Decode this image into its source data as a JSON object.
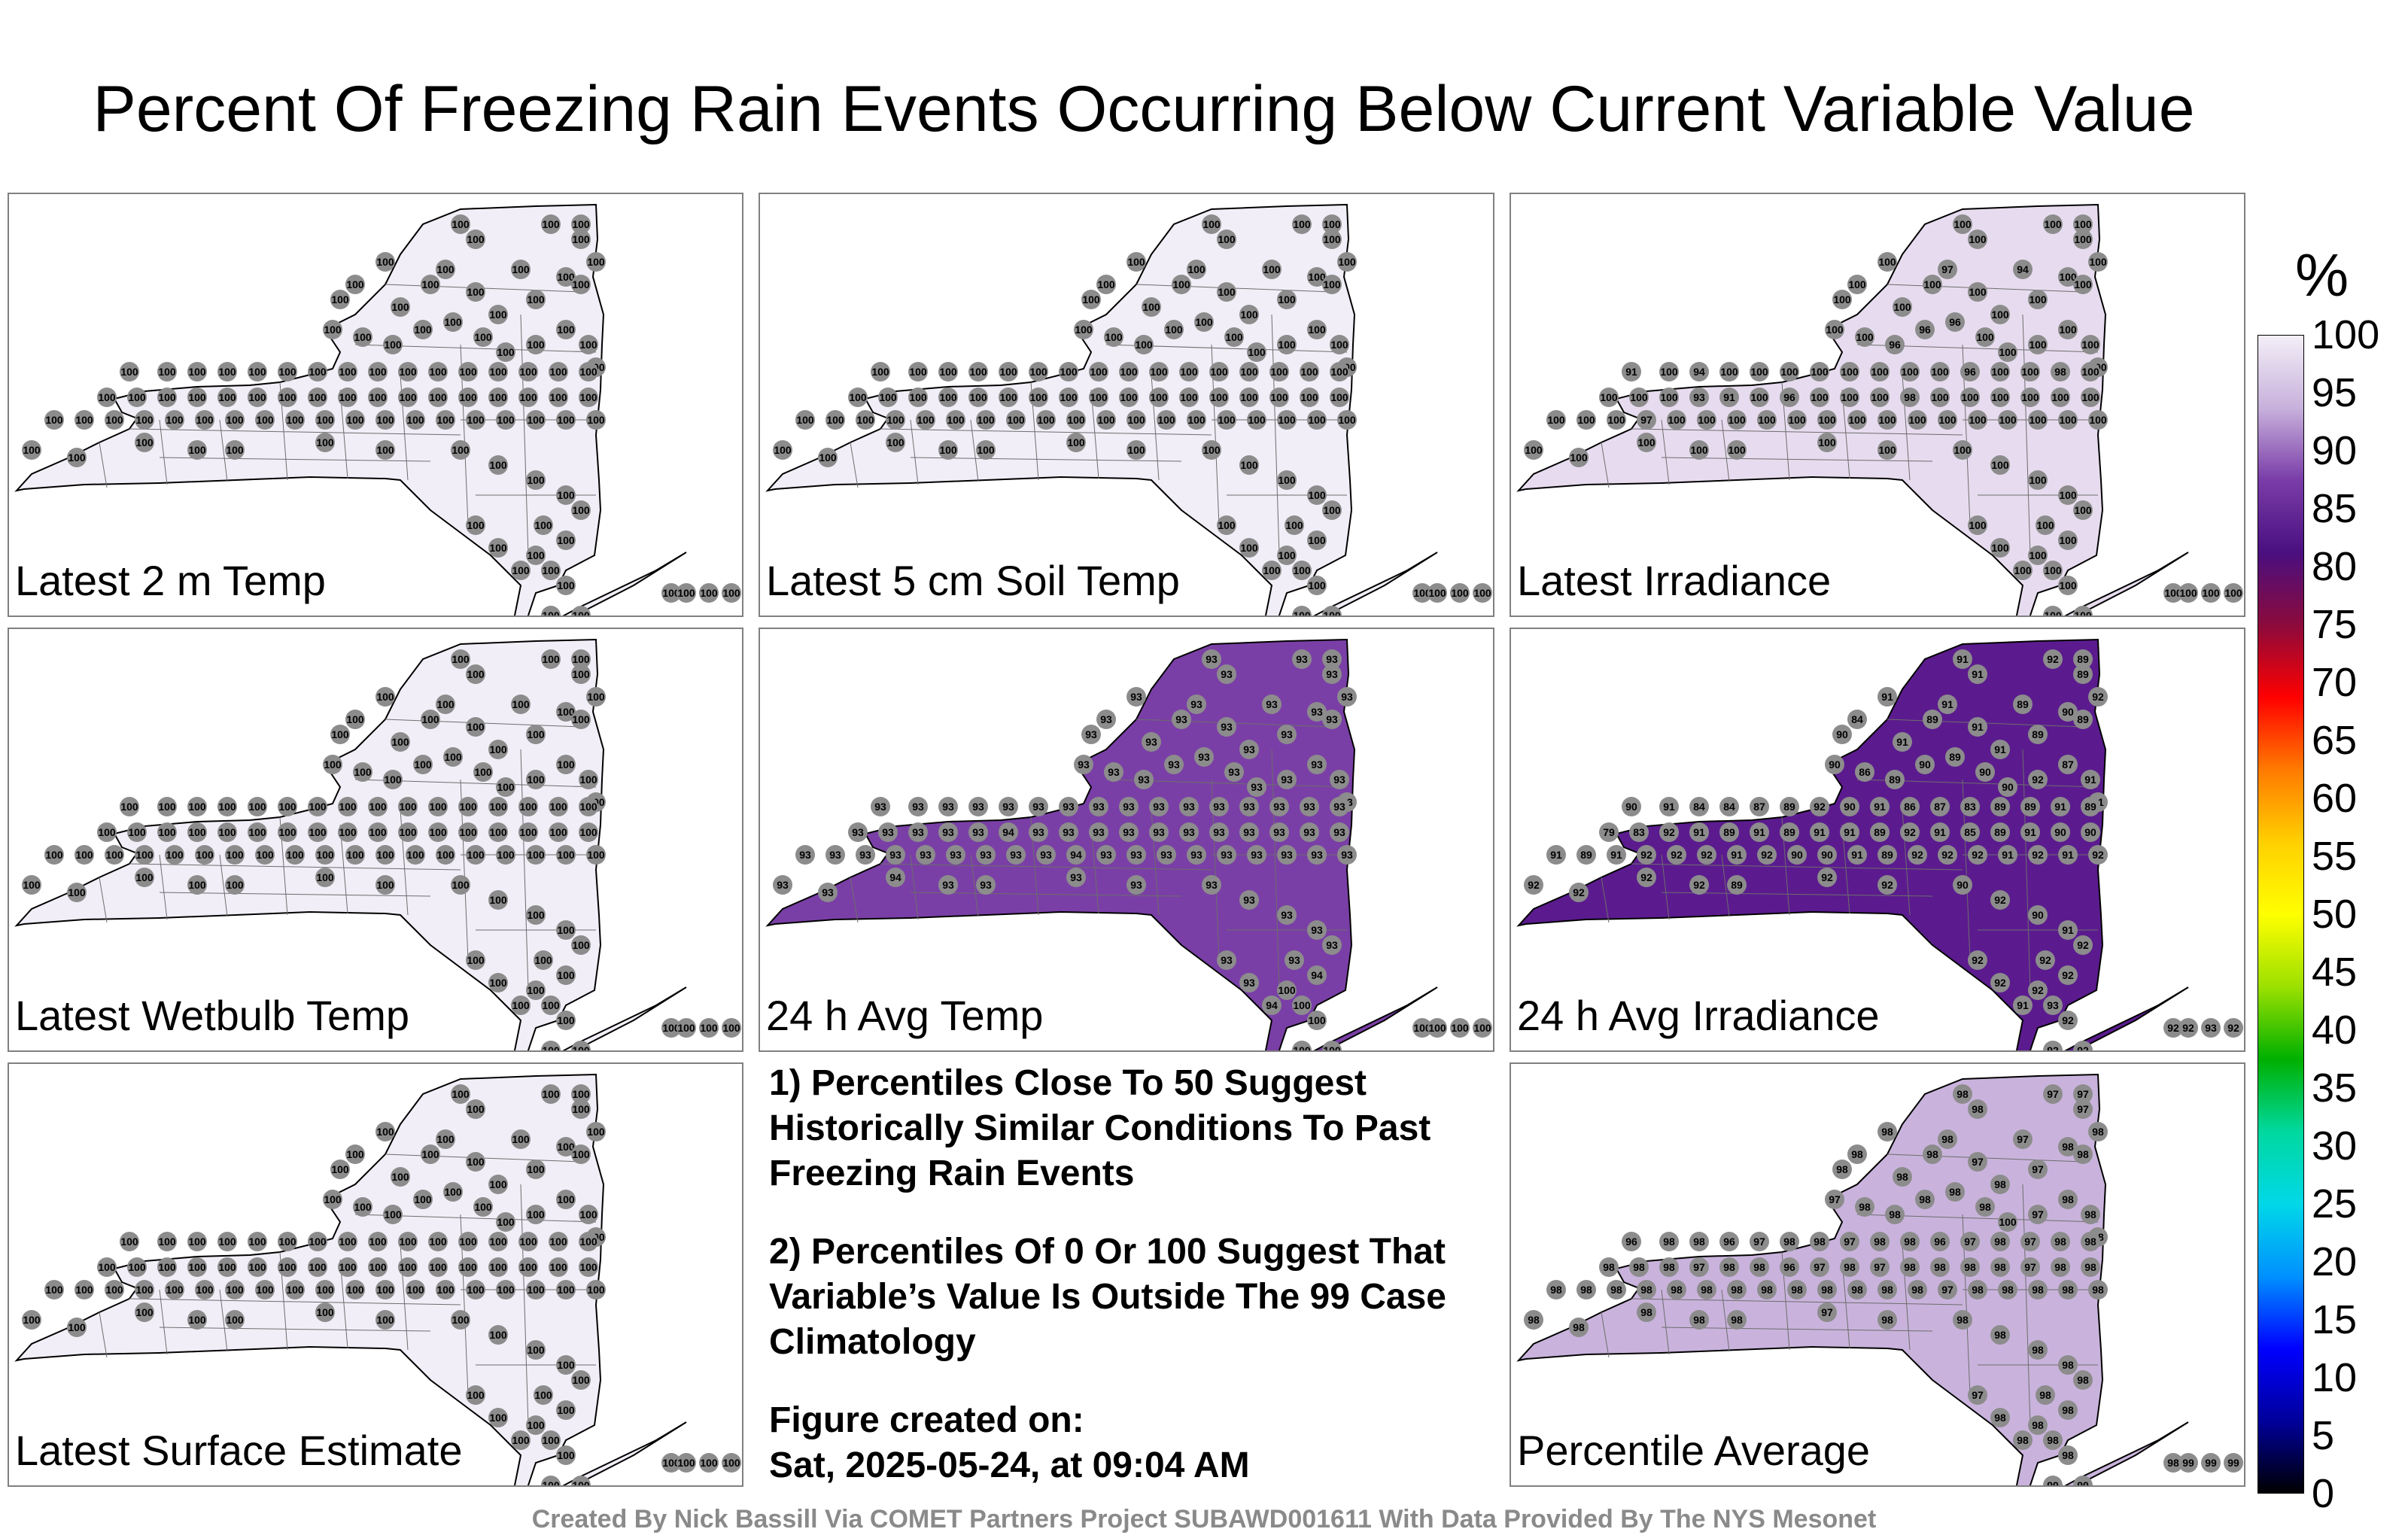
{
  "title": "Percent Of Freezing Rain Events Occurring Below Current Variable Value",
  "panels": [
    {
      "label": "Latest 2 m Temp",
      "shade": "#f2eef7",
      "values": [
        "100",
        "100",
        "100",
        "100",
        "100",
        "100",
        "100",
        "100",
        "100",
        "100",
        "100",
        "100",
        "100",
        "100",
        "100",
        "100",
        "100",
        "100",
        "100",
        "100",
        "100",
        "100",
        "100",
        "100",
        "100",
        "100",
        "100",
        "100",
        "100",
        "100",
        "100",
        "100",
        "100",
        "100",
        "100",
        "100",
        "100",
        "100",
        "100",
        "100",
        "100",
        "100",
        "100",
        "100",
        "100",
        "100",
        "100",
        "100",
        "100",
        "100",
        "100",
        "100",
        "100",
        "100",
        "100",
        "100",
        "100",
        "100",
        "100",
        "100",
        "100",
        "100",
        "100",
        "100",
        "100",
        "100",
        "100",
        "100",
        "100",
        "100",
        "100",
        "100",
        "100",
        "100",
        "100",
        "100",
        "100",
        "100",
        "100",
        "100",
        "100",
        "100",
        "100",
        "100",
        "100",
        "100",
        "100",
        "100",
        "100",
        "100",
        "100",
        "100",
        "100",
        "100",
        "100",
        "100",
        "100",
        "100",
        "100",
        "100",
        "100",
        "100",
        "100",
        "100",
        "100",
        "100",
        "100",
        "100"
      ]
    },
    {
      "label": "Latest 5 cm Soil Temp",
      "shade": "#f2eef7",
      "values": [
        "100",
        "100",
        "100",
        "100",
        "100",
        "100",
        "100",
        "100",
        "100",
        "100",
        "100",
        "100",
        "100",
        "100",
        "100",
        "100",
        "100",
        "100",
        "100",
        "100",
        "100",
        "100",
        "100",
        "100",
        "100",
        "100",
        "100",
        "100",
        "100",
        "100",
        "100",
        "100",
        "100",
        "100",
        "100",
        "100",
        "100",
        "100",
        "100",
        "100",
        "100",
        "100",
        "100",
        "100",
        "100",
        "100",
        "100",
        "100",
        "100",
        "100",
        "100",
        "100",
        "100",
        "100",
        "100",
        "100",
        "100",
        "100",
        "100",
        "100",
        "100",
        "100",
        "100",
        "100",
        "100",
        "100",
        "100",
        "100",
        "100",
        "100",
        "100",
        "100",
        "100",
        "100",
        "100",
        "100",
        "100",
        "100",
        "100",
        "100",
        "100",
        "100",
        "100",
        "100",
        "100",
        "100",
        "100",
        "100",
        "100",
        "100",
        "100",
        "100",
        "100",
        "100",
        "100",
        "100",
        "100",
        "100",
        "100",
        "100",
        "100",
        "100",
        "100",
        "100",
        "100",
        "100",
        "100",
        "100"
      ]
    },
    {
      "label": "Latest Irradiance",
      "shade": "#e7dcef",
      "values": [
        "100",
        "100",
        "100",
        "100",
        "100",
        "94",
        "100",
        "100",
        "100",
        "100",
        "100",
        "97",
        "100",
        "100",
        "100",
        "100",
        "100",
        "100",
        "100",
        "100",
        "96",
        "96",
        "96",
        "100",
        "100",
        "100",
        "100",
        "100",
        "100",
        "91",
        "100",
        "94",
        "100",
        "100",
        "100",
        "100",
        "100",
        "100",
        "100",
        "100",
        "96",
        "100",
        "100",
        "98",
        "100",
        "100",
        "100",
        "100",
        "93",
        "91",
        "100",
        "96",
        "100",
        "100",
        "100",
        "98",
        "100",
        "100",
        "100",
        "100",
        "100",
        "100",
        "100",
        "100",
        "100",
        "97",
        "100",
        "100",
        "100",
        "100",
        "100",
        "100",
        "100",
        "100",
        "100",
        "100",
        "100",
        "100",
        "100",
        "100",
        "100",
        "100",
        "100",
        "100",
        "100",
        "100",
        "100",
        "100",
        "100",
        "100",
        "100",
        "100",
        "100",
        "100",
        "100",
        "100",
        "100",
        "100",
        "100",
        "100",
        "100",
        "100",
        "100",
        "100",
        "100",
        "100",
        "100",
        "100"
      ]
    },
    {
      "label": "Latest Wetbulb Temp",
      "shade": "#f2eef7",
      "values": [
        "100",
        "100",
        "100",
        "100",
        "100",
        "100",
        "100",
        "100",
        "100",
        "100",
        "100",
        "100",
        "100",
        "100",
        "100",
        "100",
        "100",
        "100",
        "100",
        "100",
        "100",
        "100",
        "100",
        "100",
        "100",
        "100",
        "100",
        "100",
        "100",
        "100",
        "100",
        "100",
        "100",
        "100",
        "100",
        "100",
        "100",
        "100",
        "100",
        "100",
        "100",
        "100",
        "100",
        "100",
        "100",
        "100",
        "100",
        "100",
        "100",
        "100",
        "100",
        "100",
        "100",
        "100",
        "100",
        "100",
        "100",
        "100",
        "100",
        "100",
        "100",
        "100",
        "100",
        "100",
        "100",
        "100",
        "100",
        "100",
        "100",
        "100",
        "100",
        "100",
        "100",
        "100",
        "100",
        "100",
        "100",
        "100",
        "100",
        "100",
        "100",
        "100",
        "100",
        "100",
        "100",
        "100",
        "100",
        "100",
        "100",
        "100",
        "100",
        "100",
        "100",
        "100",
        "100",
        "100",
        "100",
        "100",
        "100",
        "100",
        "100",
        "100",
        "100",
        "100",
        "100",
        "100",
        "100",
        "100"
      ]
    },
    {
      "label": "24 h Avg Temp",
      "shade": "#7a3fa6",
      "values": [
        "93",
        "93",
        "93",
        "93",
        "93",
        "93",
        "93",
        "93",
        "93",
        "93",
        "93",
        "93",
        "93",
        "93",
        "93",
        "93",
        "93",
        "93",
        "93",
        "93",
        "93",
        "93",
        "93",
        "93",
        "93",
        "93",
        "93",
        "93",
        "93",
        "93",
        "93",
        "93",
        "93",
        "93",
        "93",
        "93",
        "93",
        "93",
        "93",
        "93",
        "93",
        "93",
        "93",
        "93",
        "93",
        "93",
        "93",
        "93",
        "93",
        "93",
        "94",
        "93",
        "93",
        "93",
        "93",
        "93",
        "93",
        "93",
        "93",
        "93",
        "93",
        "93",
        "93",
        "93",
        "93",
        "93",
        "93",
        "93",
        "93",
        "93",
        "93",
        "94",
        "93",
        "93",
        "93",
        "93",
        "93",
        "93",
        "93",
        "93",
        "93",
        "93",
        "93",
        "94",
        "93",
        "93",
        "93",
        "93",
        "93",
        "93",
        "93",
        "93",
        "93",
        "93",
        "93",
        "94",
        "93",
        "94",
        "100",
        "100",
        "100",
        "100",
        "100",
        "100",
        "100",
        "100",
        "100",
        "100"
      ]
    },
    {
      "label": "24 h Avg Irradiance",
      "shade": "#5b1b8e",
      "values": [
        "91",
        "91",
        "92",
        "89",
        "89",
        "89",
        "91",
        "84",
        "90",
        "91",
        "89",
        "91",
        "91",
        "91",
        "89",
        "90",
        "89",
        "92",
        "90",
        "86",
        "89",
        "90",
        "89",
        "90",
        "90",
        "92",
        "87",
        "91",
        "91",
        "90",
        "91",
        "84",
        "84",
        "87",
        "89",
        "92",
        "90",
        "91",
        "86",
        "87",
        "83",
        "89",
        "89",
        "91",
        "89",
        "79",
        "83",
        "92",
        "91",
        "89",
        "91",
        "89",
        "91",
        "91",
        "89",
        "92",
        "91",
        "85",
        "89",
        "91",
        "90",
        "90",
        "91",
        "89",
        "91",
        "92",
        "92",
        "92",
        "91",
        "92",
        "90",
        "90",
        "91",
        "89",
        "92",
        "92",
        "92",
        "91",
        "92",
        "91",
        "92",
        "92",
        "92",
        "92",
        "92",
        "89",
        "92",
        "92",
        "90",
        "92",
        "90",
        "91",
        "92",
        "92",
        "92",
        "91",
        "92",
        "92",
        "92",
        "93",
        "92",
        "92",
        "92",
        "93",
        "92",
        "92",
        "92",
        "92"
      ]
    },
    {
      "label": "Latest Surface Estimate",
      "shade": "#f2eef7",
      "values": [
        "100",
        "100",
        "100",
        "100",
        "100",
        "100",
        "100",
        "100",
        "100",
        "100",
        "100",
        "100",
        "100",
        "100",
        "100",
        "100",
        "100",
        "100",
        "100",
        "100",
        "100",
        "100",
        "100",
        "100",
        "100",
        "100",
        "100",
        "100",
        "100",
        "100",
        "100",
        "100",
        "100",
        "100",
        "100",
        "100",
        "100",
        "100",
        "100",
        "100",
        "100",
        "100",
        "100",
        "100",
        "100",
        "100",
        "100",
        "100",
        "100",
        "100",
        "100",
        "100",
        "100",
        "100",
        "100",
        "100",
        "100",
        "100",
        "100",
        "100",
        "100",
        "100",
        "100",
        "100",
        "100",
        "100",
        "100",
        "100",
        "100",
        "100",
        "100",
        "100",
        "100",
        "100",
        "100",
        "100",
        "100",
        "100",
        "100",
        "100",
        "100",
        "100",
        "100",
        "100",
        "100",
        "100",
        "100",
        "100",
        "100",
        "100",
        "100",
        "100",
        "100",
        "100",
        "100",
        "100",
        "100",
        "100",
        "100",
        "100",
        "100",
        "100",
        "100",
        "100",
        "100",
        "100",
        "100",
        "100"
      ]
    },
    {
      "label": "Percentile Average",
      "shade": "#c9b3dc",
      "values": [
        "98",
        "98",
        "97",
        "97",
        "97",
        "97",
        "98",
        "98",
        "98",
        "98",
        "98",
        "98",
        "97",
        "98",
        "97",
        "98",
        "98",
        "98",
        "97",
        "98",
        "98",
        "98",
        "98",
        "98",
        "100",
        "97",
        "98",
        "98",
        "98",
        "96",
        "98",
        "98",
        "96",
        "97",
        "98",
        "98",
        "97",
        "98",
        "98",
        "96",
        "97",
        "98",
        "97",
        "98",
        "98",
        "98",
        "98",
        "98",
        "97",
        "98",
        "98",
        "96",
        "97",
        "98",
        "97",
        "98",
        "98",
        "98",
        "98",
        "97",
        "98",
        "98",
        "98",
        "98",
        "98",
        "98",
        "98",
        "98",
        "98",
        "98",
        "98",
        "98",
        "98",
        "98",
        "98",
        "97",
        "98",
        "98",
        "98",
        "98",
        "98",
        "98",
        "98",
        "98",
        "98",
        "98",
        "97",
        "98",
        "98",
        "98",
        "98",
        "98",
        "98",
        "97",
        "98",
        "98",
        "98",
        "98",
        "98",
        "98",
        "98",
        "98",
        "99",
        "99",
        "99",
        "99",
        "99",
        "99"
      ]
    }
  ],
  "notes": [
    "1) Percentiles Close To 50 Suggest Historically Similar Conditions To Past Freezing Rain Events",
    "2) Percentiles Of 0 Or 100 Suggest That Variable’s Value Is Outside The 99 Case Climatology",
    "Figure created on:",
    "Sat, 2025-05-24, at 09:04 AM"
  ],
  "footer": "Created By Nick Bassill Via COMET Partners Project SUBAWD001611 With Data Provided By The NYS Mesonet",
  "colorbar": {
    "unit": "%",
    "ticks": [
      "100",
      "95",
      "90",
      "85",
      "80",
      "75",
      "70",
      "65",
      "60",
      "55",
      "50",
      "45",
      "40",
      "35",
      "30",
      "25",
      "20",
      "15",
      "10",
      "5",
      "0"
    ],
    "stops": [
      "#f3eff7",
      "#c8b1dc",
      "#7a3da8",
      "#4a0f80",
      "#8b0a3c",
      "#ff0000",
      "#ff7a00",
      "#ffd000",
      "#ffff00",
      "#9be000",
      "#00b000",
      "#00d8a0",
      "#00d8e8",
      "#0090ff",
      "#0000ff",
      "#00009a",
      "#000000"
    ]
  }
}
